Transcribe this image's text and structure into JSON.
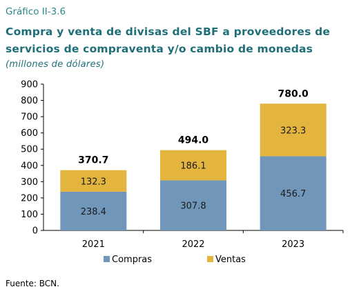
{
  "figure_label": "Gráfico II-3.6",
  "title": "Compra y venta de divisas del SBF a  proveedores de servicios de compraventa y/o cambio de monedas",
  "subtitle": "(millones de dólares)",
  "source": "Fuente: BCN.",
  "colors": {
    "compras": "#7097b9",
    "ventas": "#e3b43e",
    "title": "#1f6f78",
    "label": "#2c8a8a"
  },
  "chart_data": {
    "type": "bar",
    "stacked": true,
    "categories": [
      "2021",
      "2022",
      "2023"
    ],
    "series": [
      {
        "name": "Compras",
        "values": [
          238.4,
          307.8,
          456.7
        ]
      },
      {
        "name": "Ventas",
        "values": [
          132.3,
          186.1,
          323.3
        ]
      }
    ],
    "totals": [
      370.7,
      494.0,
      780.0
    ],
    "yticks": [
      0,
      100,
      200,
      300,
      400,
      500,
      600,
      700,
      800,
      900
    ],
    "ylim": [
      0,
      900
    ],
    "legend_position": "bottom",
    "grid": false
  }
}
